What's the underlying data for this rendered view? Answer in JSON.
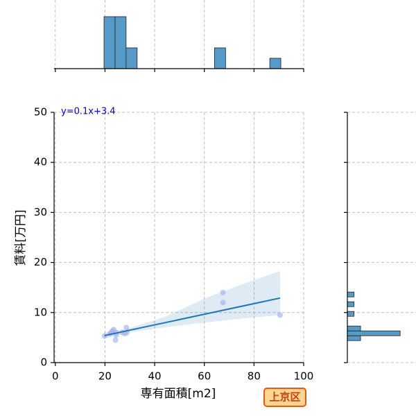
{
  "chart_data": [
    {
      "type": "scatter",
      "x_label": "専有面積[m2]",
      "y_label": "賃料[万円]",
      "xlim": [
        -0.5,
        100
      ],
      "ylim": [
        0,
        50
      ],
      "xticks": [
        0,
        20,
        40,
        60,
        80,
        100
      ],
      "yticks": [
        0,
        10,
        20,
        30,
        40,
        50
      ],
      "grid": true,
      "series": [
        {
          "color": "#aab4ee",
          "x": [
            19.8,
            22,
            22.5,
            23,
            23.5,
            24.2,
            24.5,
            24.5,
            27,
            28,
            28.6,
            28.8,
            67.5,
            67.5,
            90.5
          ],
          "values": [
            5.3,
            5.8,
            6.0,
            6.3,
            6.6,
            4.5,
            5.5,
            6.0,
            6.0,
            5.8,
            7.0,
            6.0,
            14,
            12,
            9.5
          ]
        }
      ],
      "regression": {
        "color": "#1f77b4",
        "x": [
          19.8,
          90.5
        ],
        "values": [
          5.4,
          12.9
        ],
        "ci_x": [
          19.8,
          30,
          45,
          60,
          75,
          90.5
        ],
        "ci_lower": [
          4.8,
          6.1,
          7.1,
          8.0,
          8.8,
          9.5
        ],
        "ci_upper": [
          6.0,
          6.9,
          9.3,
          12.8,
          15.6,
          18.3
        ]
      },
      "annotation": "y=0.1x+3.4",
      "badge": "上京区"
    },
    {
      "type": "histogram",
      "orientation": "vertical",
      "color": "#5799c7",
      "bins": [
        19.6,
        24.05,
        28.5,
        32.95,
        37.4,
        41.85,
        46.3,
        50.75,
        55.2,
        59.65,
        64.1,
        68.55,
        73.0,
        77.45,
        81.9,
        86.35,
        90.8
      ],
      "values": [
        5,
        5,
        2,
        0,
        0,
        0,
        0,
        0,
        0,
        0,
        2,
        0,
        0,
        0,
        0,
        1
      ],
      "xlim": [
        -0.5,
        100
      ],
      "ylim": [
        0,
        5
      ],
      "xticks": [
        0,
        20,
        40,
        60,
        80,
        100
      ],
      "grid": true
    },
    {
      "type": "histogram",
      "orientation": "horizontal",
      "color": "#5799c7",
      "bins": [
        4.4,
        5.37,
        6.34,
        7.31,
        8.28,
        9.25,
        10.22,
        11.19,
        12.16,
        13.13,
        14.1
      ],
      "values": [
        2,
        8,
        2,
        0,
        0,
        1,
        0,
        1,
        0,
        1
      ],
      "ylim": [
        0,
        50
      ],
      "xlim": [
        0,
        8.4
      ],
      "yticks": [
        0,
        10,
        20,
        30,
        40,
        50
      ],
      "grid": true
    }
  ]
}
